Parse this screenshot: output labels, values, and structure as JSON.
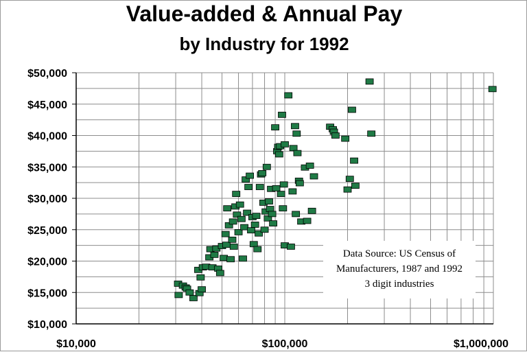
{
  "chart_data": {
    "type": "scatter",
    "title": "Value-added & Annual Pay",
    "subtitle": "by Industry for 1992",
    "xlabel": "",
    "ylabel": "",
    "x_scale": "log",
    "xlim": [
      10000,
      1000000
    ],
    "ylim": [
      10000,
      50000
    ],
    "x_ticks": [
      "$10,000",
      "$100,000",
      "$1,000,000"
    ],
    "y_ticks": [
      "$10,000",
      "$15,000",
      "$20,000",
      "$25,000",
      "$30,000",
      "$35,000",
      "$40,000",
      "$45,000",
      "$50,000"
    ],
    "grid": true,
    "marker_color": "#1f7a45",
    "annotation": [
      "Data Source: US Census of",
      "Manufacturers, 1987 and 1992",
      "3 digit industries"
    ],
    "points": [
      [
        30800,
        16400
      ],
      [
        31000,
        14600
      ],
      [
        32500,
        16100
      ],
      [
        33500,
        15800
      ],
      [
        34000,
        15600
      ],
      [
        35000,
        15000
      ],
      [
        36500,
        14100
      ],
      [
        39000,
        14900
      ],
      [
        40000,
        15500
      ],
      [
        38500,
        18600
      ],
      [
        39500,
        17400
      ],
      [
        40500,
        19000
      ],
      [
        42000,
        19100
      ],
      [
        43500,
        20600
      ],
      [
        44000,
        21900
      ],
      [
        45000,
        19000
      ],
      [
        46000,
        21000
      ],
      [
        47000,
        22000
      ],
      [
        48000,
        18800
      ],
      [
        49000,
        18100
      ],
      [
        50000,
        22400
      ],
      [
        51000,
        20500
      ],
      [
        52000,
        24300
      ],
      [
        52500,
        22600
      ],
      [
        53000,
        28400
      ],
      [
        54000,
        25700
      ],
      [
        55000,
        20300
      ],
      [
        56000,
        23400
      ],
      [
        56500,
        26300
      ],
      [
        57000,
        22300
      ],
      [
        58000,
        28700
      ],
      [
        58500,
        30700
      ],
      [
        59000,
        27400
      ],
      [
        60000,
        24600
      ],
      [
        61000,
        29000
      ],
      [
        62000,
        26700
      ],
      [
        63000,
        20400
      ],
      [
        64000,
        25400
      ],
      [
        65000,
        33000
      ],
      [
        66000,
        27700
      ],
      [
        67000,
        31800
      ],
      [
        68000,
        33600
      ],
      [
        69000,
        24900
      ],
      [
        70000,
        27000
      ],
      [
        71000,
        22700
      ],
      [
        72000,
        25800
      ],
      [
        73000,
        27200
      ],
      [
        74000,
        21900
      ],
      [
        75000,
        24400
      ],
      [
        76000,
        31800
      ],
      [
        77000,
        33800
      ],
      [
        78000,
        34000
      ],
      [
        79000,
        29300
      ],
      [
        80000,
        25000
      ],
      [
        81000,
        27900
      ],
      [
        82000,
        35000
      ],
      [
        83000,
        26800
      ],
      [
        84000,
        29500
      ],
      [
        85000,
        28300
      ],
      [
        86000,
        31500
      ],
      [
        87000,
        27500
      ],
      [
        88000,
        26000
      ],
      [
        90000,
        41300
      ],
      [
        91000,
        31600
      ],
      [
        92000,
        37500
      ],
      [
        93000,
        38200
      ],
      [
        94000,
        37000
      ],
      [
        95000,
        38300
      ],
      [
        96000,
        30700
      ],
      [
        97000,
        43300
      ],
      [
        98000,
        28400
      ],
      [
        99000,
        32200
      ],
      [
        100000,
        38600
      ],
      [
        100000,
        22500
      ],
      [
        104000,
        46400
      ],
      [
        107000,
        22300
      ],
      [
        109000,
        31100
      ],
      [
        110000,
        38000
      ],
      [
        112000,
        41500
      ],
      [
        113000,
        27500
      ],
      [
        114000,
        40300
      ],
      [
        115000,
        37200
      ],
      [
        117000,
        32800
      ],
      [
        118000,
        32400
      ],
      [
        120000,
        26300
      ],
      [
        125000,
        34900
      ],
      [
        128000,
        26400
      ],
      [
        132000,
        35200
      ],
      [
        135000,
        28000
      ],
      [
        138000,
        33500
      ],
      [
        165000,
        41400
      ],
      [
        170000,
        41000
      ],
      [
        172000,
        40600
      ],
      [
        175000,
        40000
      ],
      [
        195000,
        39500
      ],
      [
        200000,
        31400
      ],
      [
        205000,
        33100
      ],
      [
        210000,
        44100
      ],
      [
        215000,
        36000
      ],
      [
        218000,
        32000
      ],
      [
        255000,
        48600
      ],
      [
        260000,
        40300
      ],
      [
        990000,
        47400
      ]
    ]
  }
}
